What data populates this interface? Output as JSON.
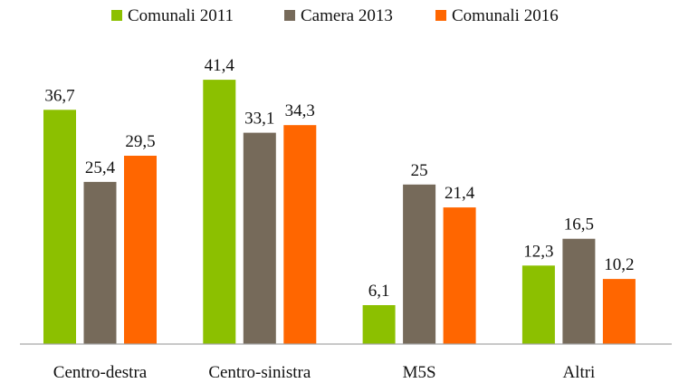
{
  "chart_data": {
    "type": "bar",
    "title": "",
    "xlabel": "",
    "ylabel": "",
    "ylim": [
      0,
      45
    ],
    "grid": false,
    "legend_position": "top-center",
    "categories": [
      "Centro-destra",
      "Centro-sinistra",
      "M5S",
      "Altri"
    ],
    "series": [
      {
        "name": "Comunali 2011",
        "color": "#8cc000",
        "values": [
          36.7,
          41.4,
          6.1,
          12.3
        ],
        "labels": [
          "36,7",
          "41,4",
          "6,1",
          "12,3"
        ]
      },
      {
        "name": "Camera 2013",
        "color": "#766a5a",
        "values": [
          25.4,
          33.1,
          25,
          16.5
        ],
        "labels": [
          "25,4",
          "33,1",
          "25",
          "16,5"
        ]
      },
      {
        "name": "Comunali 2016",
        "color": "#ff6600",
        "values": [
          29.5,
          34.3,
          21.4,
          10.2
        ],
        "labels": [
          "29,5",
          "34,3",
          "21,4",
          "10,2"
        ]
      }
    ]
  }
}
